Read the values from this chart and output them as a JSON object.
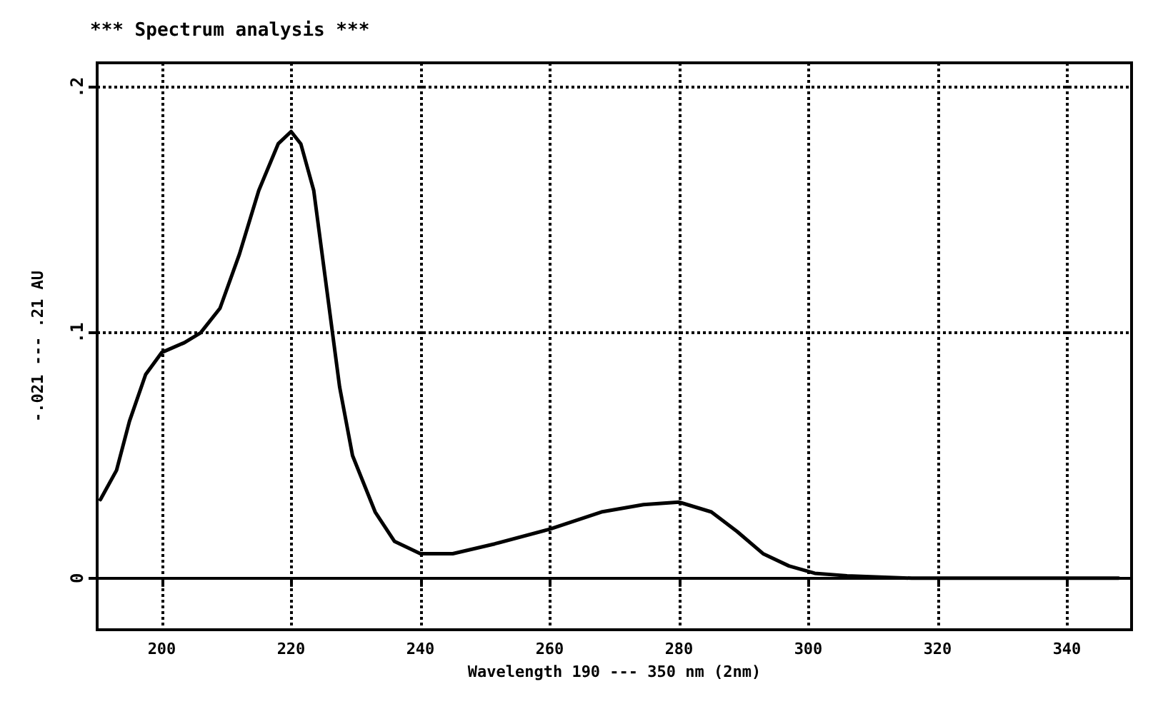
{
  "chart_data": {
    "type": "line",
    "title": "*** Spectrum analysis ***",
    "xlabel": "Wavelength 190 --- 350 nm (2nm)",
    "ylabel": "-.021 --- .21 AU",
    "xlim": [
      190,
      350
    ],
    "xticks": [
      200,
      220,
      240,
      260,
      280,
      300,
      320,
      340
    ],
    "ylim": [
      -0.021,
      0.21
    ],
    "yticks": [
      {
        "value": 0,
        "label": "0"
      },
      {
        "value": 0.1,
        "label": ".1"
      },
      {
        "value": 0.2,
        "label": ".2"
      }
    ],
    "grid": true,
    "line_style": "solid",
    "marker": "none",
    "series": [
      {
        "color": "#000000",
        "x": [
          190.5,
          193,
          195,
          197.5,
          200,
          203.5,
          206,
          209,
          212,
          215,
          218,
          220,
          221.5,
          223.5,
          225.5,
          227.5,
          229.5,
          233,
          236,
          240,
          245,
          251.5,
          260,
          268,
          274.5,
          280,
          285,
          289,
          293,
          297,
          301,
          306,
          316,
          348
        ],
        "values": [
          0.032,
          0.044,
          0.064,
          0.083,
          0.092,
          0.096,
          0.1,
          0.11,
          0.132,
          0.158,
          0.177,
          0.182,
          0.177,
          0.158,
          0.118,
          0.078,
          0.05,
          0.027,
          0.015,
          0.01,
          0.01,
          0.014,
          0.02,
          0.027,
          0.03,
          0.031,
          0.027,
          0.019,
          0.01,
          0.005,
          0.002,
          0.001,
          0,
          0
        ]
      }
    ]
  }
}
